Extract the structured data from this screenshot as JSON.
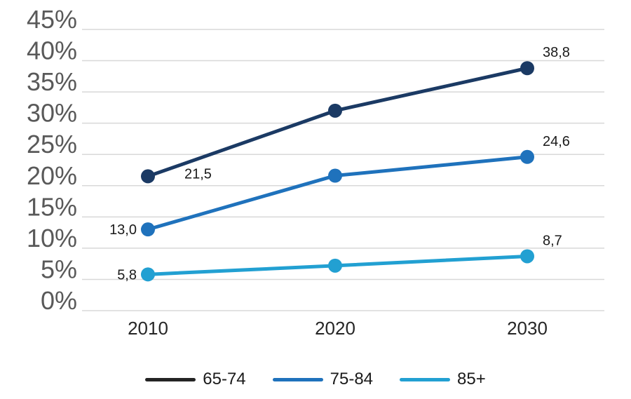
{
  "chart_data": {
    "type": "line",
    "categories": [
      "2010",
      "2020",
      "2030"
    ],
    "series": [
      {
        "name": "65-74",
        "color": "#1b3a64",
        "values": [
          21.5,
          32.0,
          38.8
        ],
        "point_labels": [
          "21,5",
          null,
          "38,8"
        ],
        "label_positions": [
          "right",
          null,
          "above-right"
        ]
      },
      {
        "name": "75-84",
        "color": "#1f72bc",
        "values": [
          13.0,
          21.6,
          24.6
        ],
        "point_labels": [
          "13,0",
          null,
          "24,6"
        ],
        "label_positions": [
          "left",
          null,
          "above-right"
        ]
      },
      {
        "name": "85+",
        "color": "#22a0d2",
        "values": [
          5.8,
          7.2,
          8.7
        ],
        "point_labels": [
          "5,8",
          null,
          "8,7"
        ],
        "label_positions": [
          "left",
          null,
          "above-right"
        ]
      }
    ],
    "y_axis": {
      "min": 0,
      "max": 45,
      "step": 5,
      "tick_suffix": "%"
    },
    "x_axis": {
      "tick_labels": [
        "2010",
        "2020",
        "2030"
      ]
    },
    "grid": true,
    "legend_position": "bottom",
    "legend": [
      {
        "label": "65-74",
        "swatch_color": "#242424"
      },
      {
        "label": "75-84",
        "swatch_color": "#1f72bc"
      },
      {
        "label": "85+",
        "swatch_color": "#22a0d2"
      }
    ],
    "title": ""
  },
  "style": {
    "background": "#ffffff",
    "gridline_color": "#d8d8d8",
    "y_tick_color": "#595959",
    "x_tick_color": "#262626",
    "data_label_color": "#1a1a1a",
    "legend_text_color": "#1a1a1a"
  }
}
